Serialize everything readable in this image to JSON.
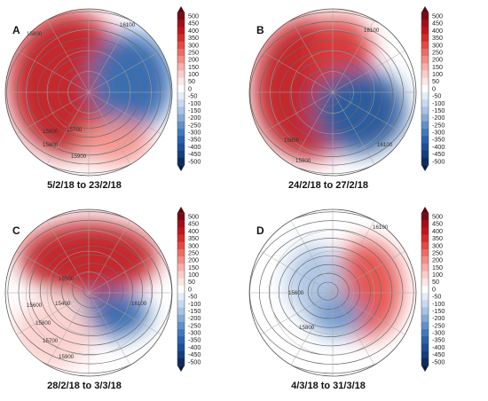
{
  "colorbar": {
    "ticks": [
      "500",
      "450",
      "400",
      "350",
      "300",
      "250",
      "200",
      "150",
      "100",
      "50",
      "0",
      "-50",
      "-100",
      "-150",
      "-200",
      "-250",
      "-300",
      "-350",
      "-400",
      "-450",
      "-500"
    ],
    "colors": [
      "#7a0a14",
      "#a10f1a",
      "#c0141e",
      "#d72a2a",
      "#e44a45",
      "#ee6c66",
      "#f48d86",
      "#f9aea8",
      "#fbcdca",
      "#fde6e4",
      "#ffffff",
      "#e4ecf7",
      "#c8d9ee",
      "#a9c3e3",
      "#86a9d6",
      "#6290c9",
      "#4178bc",
      "#2a62ad",
      "#1d4f97",
      "#153e7e",
      "#0d2c5f"
    ]
  },
  "panels": [
    {
      "id": "A",
      "label": "A",
      "caption": "5/2/18 to 23/2/18",
      "blobs": [
        {
          "cx": 78,
          "cy": 95,
          "rx": 68,
          "ry": 82,
          "color": "#c0141e"
        },
        {
          "cx": 148,
          "cy": 92,
          "rx": 46,
          "ry": 55,
          "color": "#2a62ad"
        },
        {
          "cx": 130,
          "cy": 160,
          "rx": 40,
          "ry": 25,
          "color": "#f48d86"
        }
      ],
      "contour_labels": [
        {
          "text": "15800",
          "x": 30,
          "y": 40
        },
        {
          "text": "16100",
          "x": 135,
          "y": 30
        },
        {
          "text": "15800",
          "x": 48,
          "y": 150
        },
        {
          "text": "15700",
          "x": 75,
          "y": 148
        },
        {
          "text": "15800",
          "x": 48,
          "y": 165
        },
        {
          "text": "15900",
          "x": 80,
          "y": 178
        }
      ]
    },
    {
      "id": "B",
      "label": "B",
      "caption": "24/2/18 to 27/2/18",
      "blobs": [
        {
          "cx": 72,
          "cy": 100,
          "rx": 62,
          "ry": 80,
          "color": "#c0141e"
        },
        {
          "cx": 110,
          "cy": 60,
          "rx": 34,
          "ry": 40,
          "color": "#d72a2a"
        },
        {
          "cx": 130,
          "cy": 125,
          "rx": 52,
          "ry": 48,
          "color": "#1d4f97"
        }
      ],
      "contour_labels": [
        {
          "text": "16100",
          "x": 135,
          "y": 36
        },
        {
          "text": "15800",
          "x": 45,
          "y": 160
        },
        {
          "text": "15900",
          "x": 58,
          "y": 183
        },
        {
          "text": "16100",
          "x": 150,
          "y": 165
        }
      ]
    },
    {
      "id": "C",
      "label": "C",
      "caption": "28/2/18 to 3/3/18",
      "blobs": [
        {
          "cx": 100,
          "cy": 65,
          "rx": 78,
          "ry": 42,
          "color": "#c0141e"
        },
        {
          "cx": 128,
          "cy": 128,
          "rx": 40,
          "ry": 26,
          "color": "#2a62ad"
        },
        {
          "cx": 60,
          "cy": 150,
          "rx": 45,
          "ry": 40,
          "color": "#fbcdca"
        }
      ],
      "contour_labels": [
        {
          "text": "15500",
          "x": 66,
          "y": 90
        },
        {
          "text": "15400",
          "x": 62,
          "y": 118
        },
        {
          "text": "15600",
          "x": 30,
          "y": 120
        },
        {
          "text": "15800",
          "x": 40,
          "y": 140
        },
        {
          "text": "15700",
          "x": 48,
          "y": 160
        },
        {
          "text": "15900",
          "x": 66,
          "y": 178
        },
        {
          "text": "16100",
          "x": 148,
          "y": 118
        }
      ]
    },
    {
      "id": "D",
      "label": "D",
      "caption": "4/3/18 to 31/3/18",
      "blobs": [
        {
          "cx": 138,
          "cy": 100,
          "rx": 40,
          "ry": 55,
          "color": "#e44a45"
        },
        {
          "cx": 80,
          "cy": 90,
          "rx": 32,
          "ry": 40,
          "color": "#a9c3e3"
        },
        {
          "cx": 105,
          "cy": 130,
          "rx": 30,
          "ry": 22,
          "color": "#6290c9"
        }
      ],
      "contour_labels": [
        {
          "text": "16100",
          "x": 145,
          "y": 32
        },
        {
          "text": "15600",
          "x": 50,
          "y": 106
        },
        {
          "text": "15800",
          "x": 62,
          "y": 145
        }
      ]
    }
  ]
}
